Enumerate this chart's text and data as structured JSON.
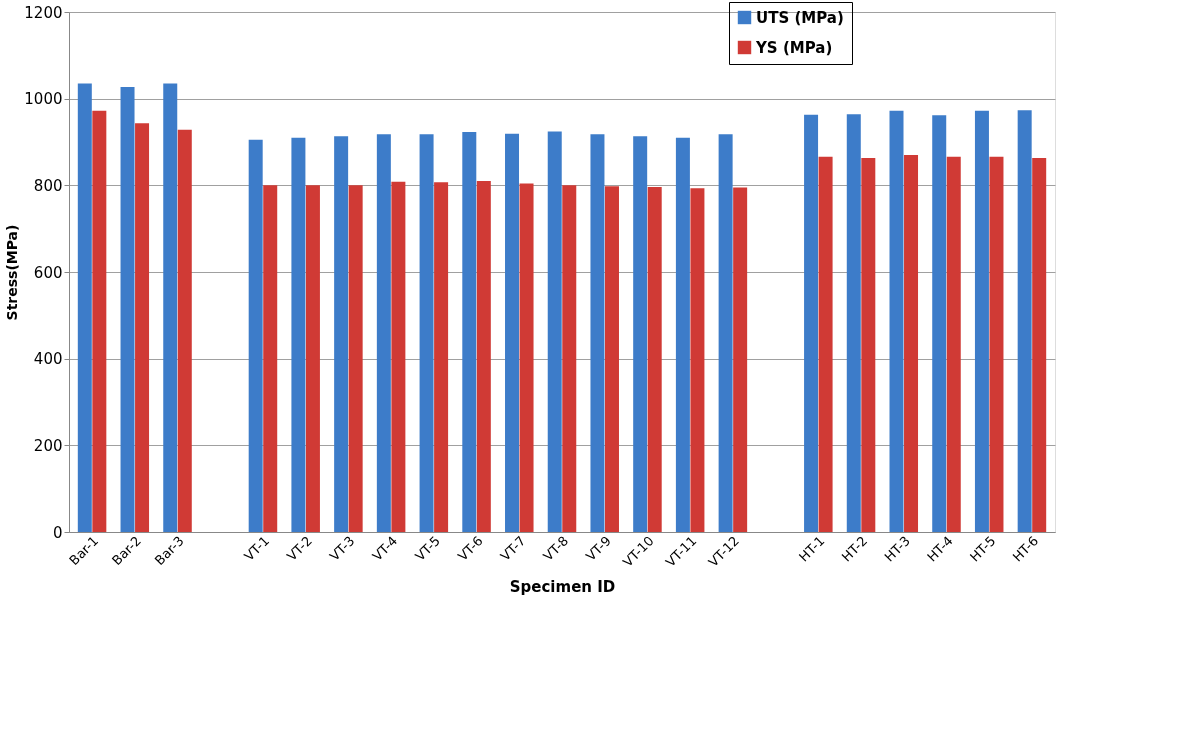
{
  "chart_data": {
    "type": "bar",
    "xlabel": "Specimen ID",
    "ylabel": "Stress(MPa)",
    "categories": [
      "Bar-1",
      "Bar-2",
      "Bar-3",
      null,
      "VT-1",
      "VT-2",
      "VT-3",
      "VT-4",
      "VT-5",
      "VT-6",
      "VT-7",
      "VT-8",
      "VT-9",
      "VT-10",
      "VT-11",
      "VT-12",
      null,
      "HT-1",
      "HT-2",
      "HT-3",
      "HT-4",
      "HT-5",
      "HT-6"
    ],
    "series": [
      {
        "name": "UTS (MPa)",
        "color": "#3d7cc9",
        "values": [
          1035,
          1027,
          1035,
          null,
          905,
          910,
          913,
          918,
          918,
          923,
          919,
          924,
          918,
          913,
          910,
          918,
          null,
          963,
          964,
          972,
          962,
          972,
          973
        ]
      },
      {
        "name": "YS (MPa)",
        "color": "#d03a35",
        "values": [
          972,
          943,
          928,
          null,
          800,
          800,
          800,
          808,
          807,
          810,
          804,
          800,
          798,
          796,
          793,
          795,
          null,
          866,
          863,
          870,
          866,
          866,
          863
        ]
      }
    ],
    "ylim": [
      0,
      1200
    ],
    "yticks": [
      0,
      200,
      400,
      600,
      800,
      1000,
      1200
    ],
    "grid": "y",
    "legend": "top"
  }
}
